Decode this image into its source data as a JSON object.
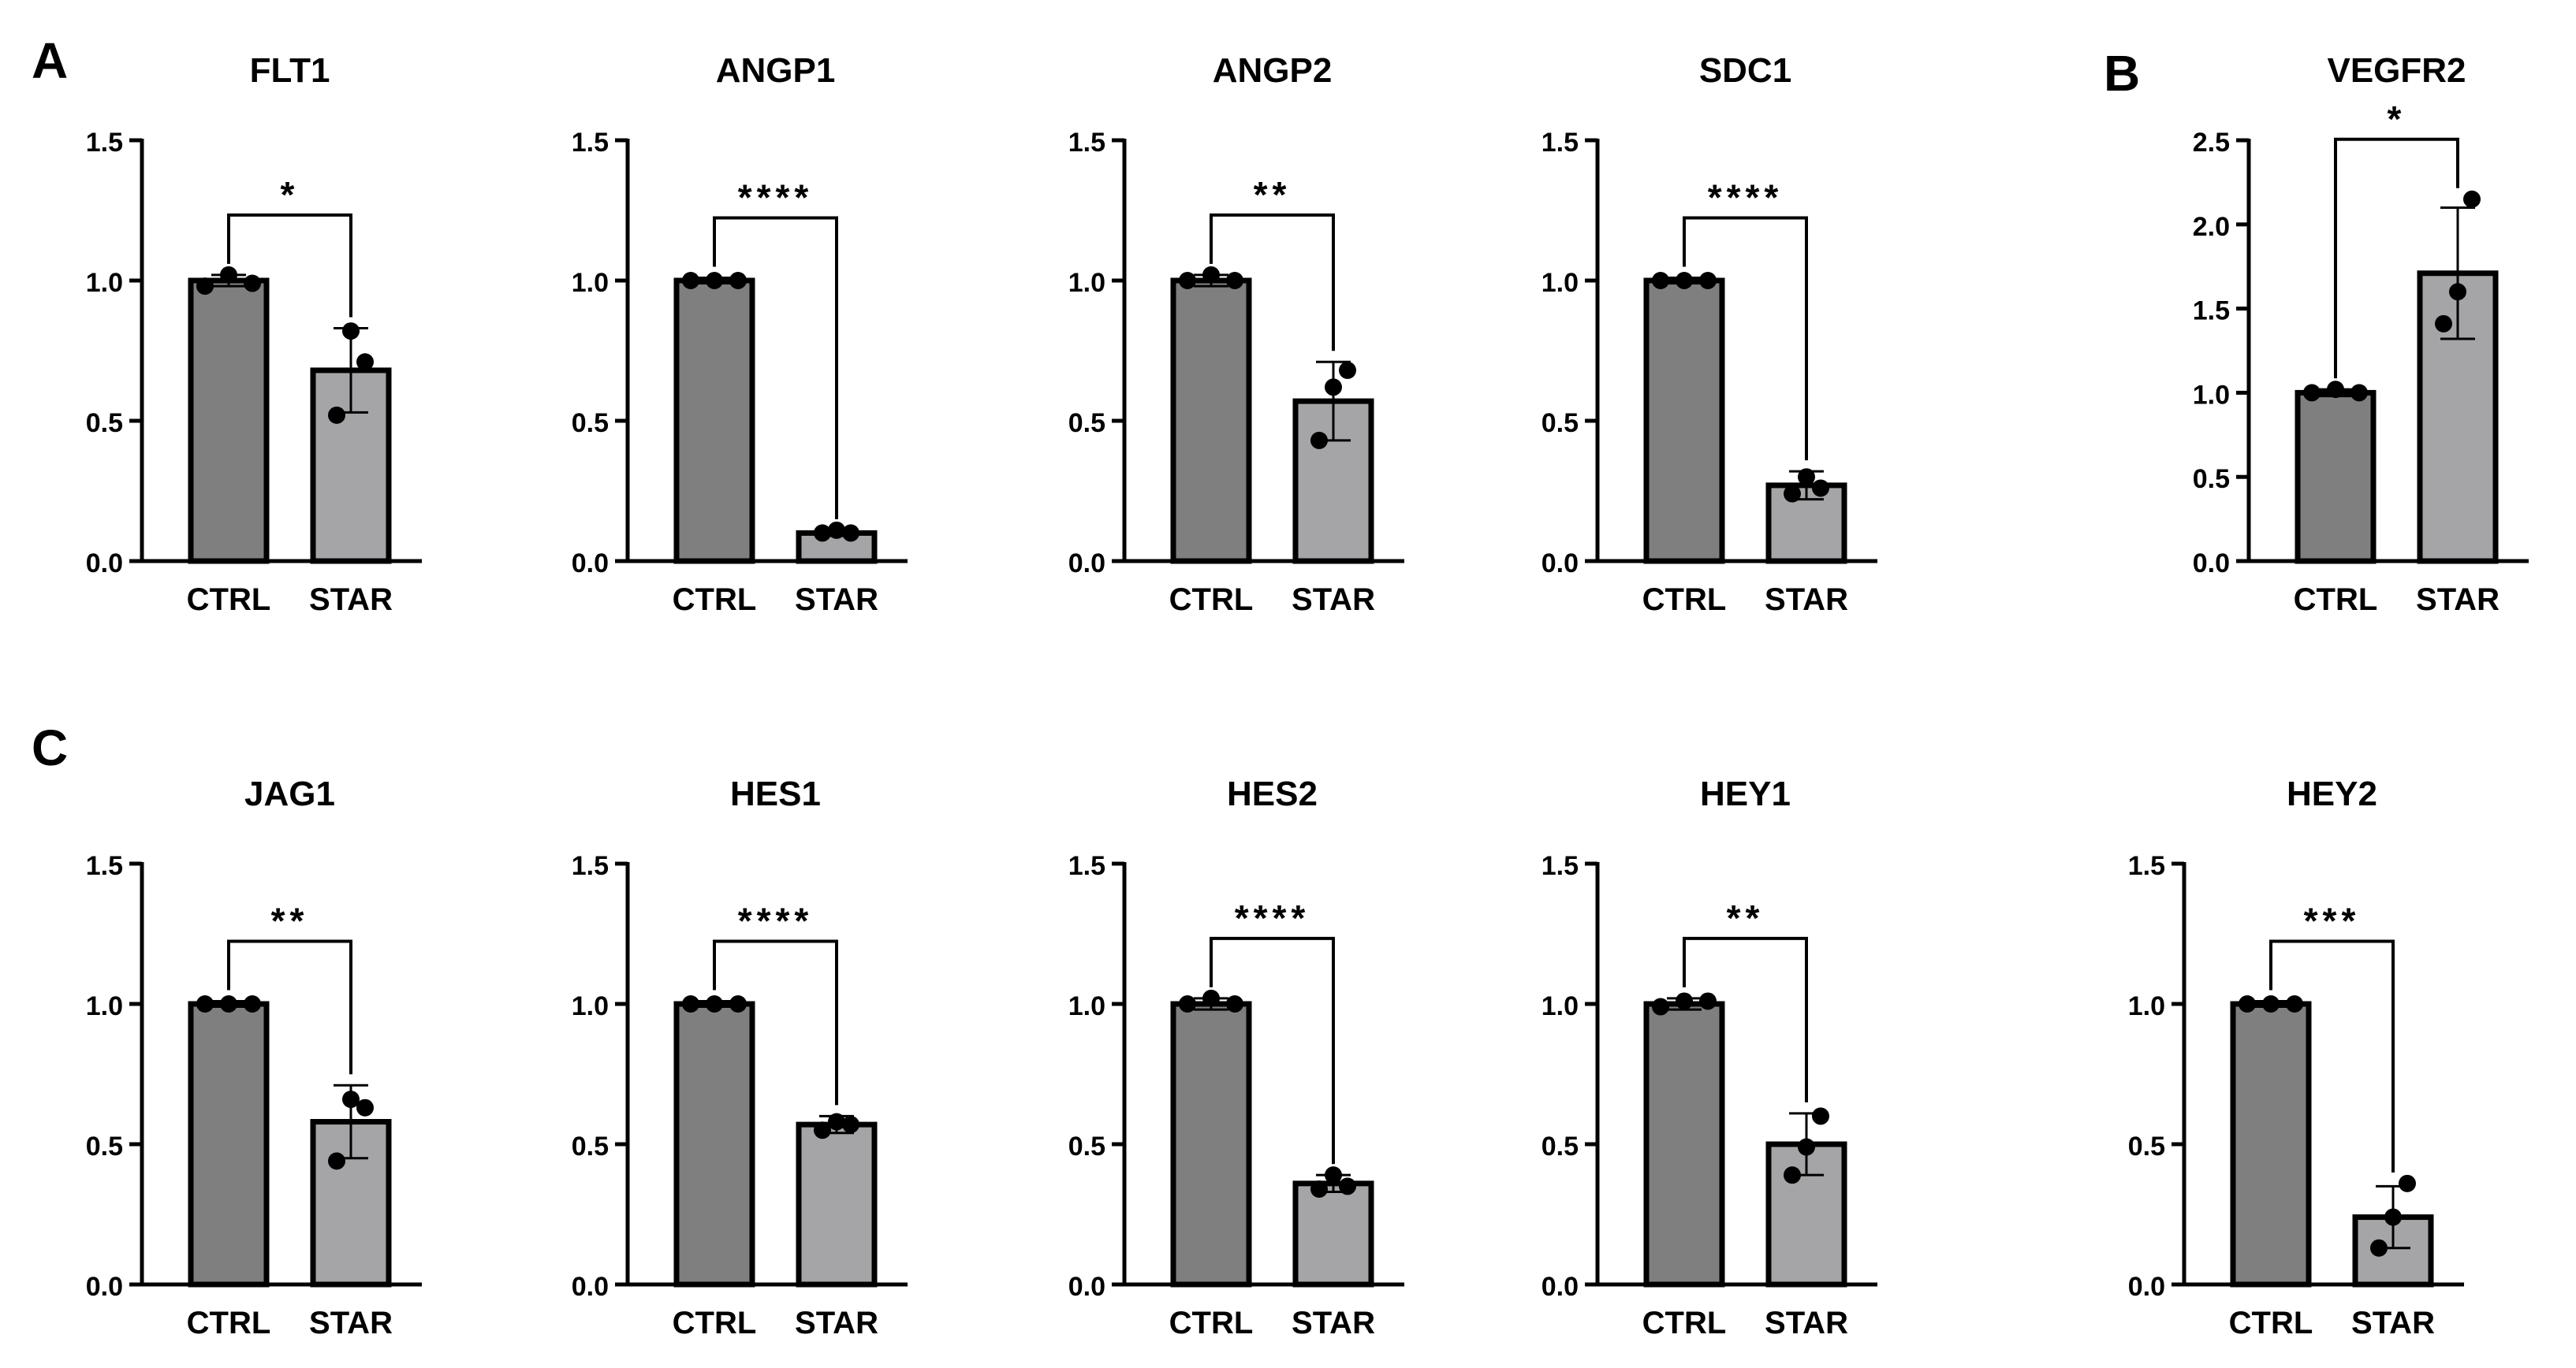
{
  "panels": {
    "a": "A",
    "b": "B",
    "c": "C"
  },
  "colors": {
    "ctrl_fill": "#7f7f7f",
    "star_fill": "#a5a5a8",
    "ink": "#000000"
  },
  "chart_data": [
    {
      "panel": "A",
      "type": "bar",
      "title": "FLT1",
      "categories": [
        "CTRL",
        "STAR"
      ],
      "values": [
        1.0,
        0.68
      ],
      "sd": [
        0.02,
        0.15
      ],
      "points": [
        [
          0.98,
          1.02,
          0.99
        ],
        [
          0.52,
          0.82,
          0.71
        ]
      ],
      "significance": "*",
      "ylim": [
        0,
        1.5
      ],
      "yticks": [
        "0.0",
        "0.5",
        "1.0",
        "1.5"
      ],
      "xlabel": "",
      "ylabel": ""
    },
    {
      "panel": "A",
      "type": "bar",
      "title": "ANGP1",
      "categories": [
        "CTRL",
        "STAR"
      ],
      "values": [
        1.0,
        0.1
      ],
      "sd": [
        0.01,
        0.01
      ],
      "points": [
        [
          1.0,
          1.0,
          1.0
        ],
        [
          0.1,
          0.11,
          0.1
        ]
      ],
      "significance": "****",
      "ylim": [
        0,
        1.5
      ],
      "yticks": [
        "0.0",
        "0.5",
        "1.0",
        "1.5"
      ],
      "xlabel": "",
      "ylabel": ""
    },
    {
      "panel": "A",
      "type": "bar",
      "title": "ANGP2",
      "categories": [
        "CTRL",
        "STAR"
      ],
      "values": [
        1.0,
        0.57
      ],
      "sd": [
        0.02,
        0.14
      ],
      "points": [
        [
          1.0,
          1.02,
          1.0
        ],
        [
          0.43,
          0.62,
          0.68
        ]
      ],
      "significance": "**",
      "ylim": [
        0,
        1.5
      ],
      "yticks": [
        "0.0",
        "0.5",
        "1.0",
        "1.5"
      ],
      "xlabel": "",
      "ylabel": ""
    },
    {
      "panel": "A",
      "type": "bar",
      "title": "SDC1",
      "categories": [
        "CTRL",
        "STAR"
      ],
      "values": [
        1.0,
        0.27
      ],
      "sd": [
        0.01,
        0.05
      ],
      "points": [
        [
          1.0,
          1.0,
          1.0
        ],
        [
          0.24,
          0.3,
          0.26
        ]
      ],
      "significance": "****",
      "ylim": [
        0,
        1.5
      ],
      "yticks": [
        "0.0",
        "0.5",
        "1.0",
        "1.5"
      ],
      "xlabel": "",
      "ylabel": ""
    },
    {
      "panel": "B",
      "type": "bar",
      "title": "VEGFR2",
      "categories": [
        "CTRL",
        "STAR"
      ],
      "values": [
        1.0,
        1.71
      ],
      "sd": [
        0.02,
        0.39
      ],
      "points": [
        [
          1.0,
          1.02,
          1.0
        ],
        [
          1.41,
          1.6,
          2.15
        ]
      ],
      "significance": "*",
      "ylim": [
        0,
        2.5
      ],
      "yticks": [
        "0.0",
        "0.5",
        "1.0",
        "1.5",
        "2.0",
        "2.5"
      ],
      "xlabel": "",
      "ylabel": ""
    },
    {
      "panel": "C",
      "type": "bar",
      "title": "JAG1",
      "categories": [
        "CTRL",
        "STAR"
      ],
      "values": [
        1.0,
        0.58
      ],
      "sd": [
        0.01,
        0.13
      ],
      "points": [
        [
          1.0,
          1.0,
          1.0
        ],
        [
          0.44,
          0.66,
          0.63
        ]
      ],
      "significance": "**",
      "ylim": [
        0,
        1.5
      ],
      "yticks": [
        "0.0",
        "0.5",
        "1.0",
        "1.5"
      ],
      "xlabel": "",
      "ylabel": ""
    },
    {
      "panel": "C",
      "type": "bar",
      "title": "HES1",
      "categories": [
        "CTRL",
        "STAR"
      ],
      "values": [
        1.0,
        0.57
      ],
      "sd": [
        0.01,
        0.03
      ],
      "points": [
        [
          1.0,
          1.0,
          1.0
        ],
        [
          0.55,
          0.58,
          0.57
        ]
      ],
      "significance": "****",
      "ylim": [
        0,
        1.5
      ],
      "yticks": [
        "0.0",
        "0.5",
        "1.0",
        "1.5"
      ],
      "xlabel": "",
      "ylabel": ""
    },
    {
      "panel": "C",
      "type": "bar",
      "title": "HES2",
      "categories": [
        "CTRL",
        "STAR"
      ],
      "values": [
        1.0,
        0.36
      ],
      "sd": [
        0.02,
        0.03
      ],
      "points": [
        [
          1.0,
          1.02,
          1.0
        ],
        [
          0.34,
          0.39,
          0.35
        ]
      ],
      "significance": "****",
      "ylim": [
        0,
        1.5
      ],
      "yticks": [
        "0.0",
        "0.5",
        "1.0",
        "1.5"
      ],
      "xlabel": "",
      "ylabel": ""
    },
    {
      "panel": "C",
      "type": "bar",
      "title": "HEY1",
      "categories": [
        "CTRL",
        "STAR"
      ],
      "values": [
        1.0,
        0.5
      ],
      "sd": [
        0.02,
        0.11
      ],
      "points": [
        [
          0.99,
          1.01,
          1.01
        ],
        [
          0.39,
          0.49,
          0.6
        ]
      ],
      "significance": "**",
      "ylim": [
        0,
        1.5
      ],
      "yticks": [
        "0.0",
        "0.5",
        "1.0",
        "1.5"
      ],
      "xlabel": "",
      "ylabel": ""
    },
    {
      "panel": "C",
      "type": "bar",
      "title": "HEY2",
      "categories": [
        "CTRL",
        "STAR"
      ],
      "values": [
        1.0,
        0.24
      ],
      "sd": [
        0.01,
        0.11
      ],
      "points": [
        [
          1.0,
          1.0,
          1.0
        ],
        [
          0.13,
          0.24,
          0.36
        ]
      ],
      "significance": "***",
      "ylim": [
        0,
        1.5
      ],
      "yticks": [
        "0.0",
        "0.5",
        "1.0",
        "1.5"
      ],
      "xlabel": "",
      "ylabel": ""
    }
  ]
}
